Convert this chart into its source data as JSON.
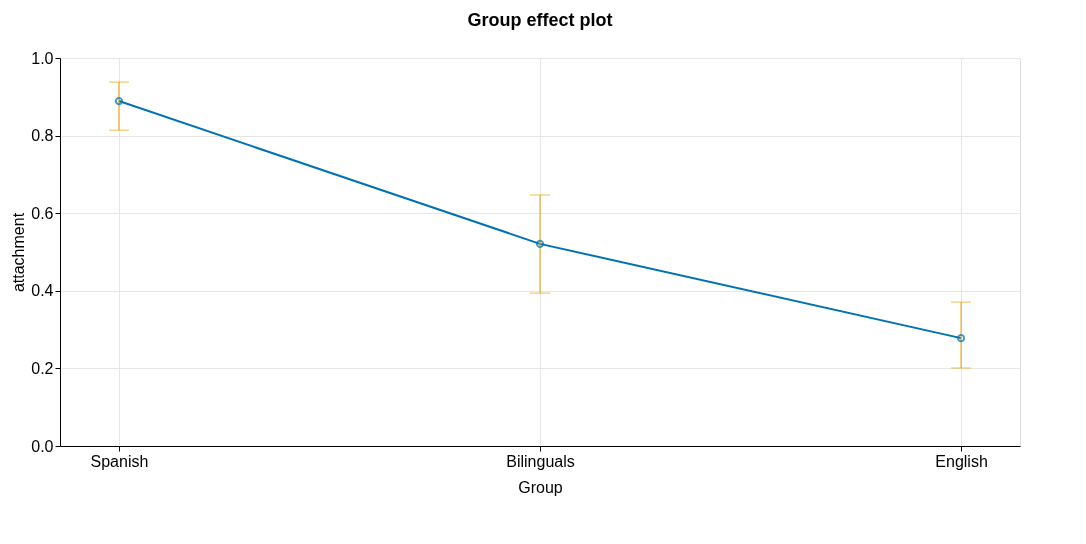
{
  "chart_data": {
    "type": "line",
    "title": "Group effect plot",
    "xlabel": "Group",
    "ylabel": "attachment",
    "categories": [
      "Spanish",
      "Bilinguals",
      "English"
    ],
    "series": [
      {
        "color": "#0072b2",
        "values": [
          0.889,
          0.521,
          0.278
        ],
        "errors": [
          [
            0.814,
            0.938
          ],
          [
            0.394,
            0.647
          ],
          [
            0.201,
            0.371
          ]
        ]
      }
    ],
    "ylim": [
      0,
      1
    ],
    "yticks": [
      {
        "value": 0,
        "label": "0.0"
      },
      {
        "value": 0.2,
        "label": "0.2"
      },
      {
        "value": 0.4,
        "label": "0.4"
      },
      {
        "value": 0.6,
        "label": "0.6"
      },
      {
        "value": 0.8,
        "label": "0.8"
      },
      {
        "value": 1,
        "label": "1.0"
      }
    ],
    "grid": true,
    "marker": "circle",
    "line_style": "solid"
  }
}
